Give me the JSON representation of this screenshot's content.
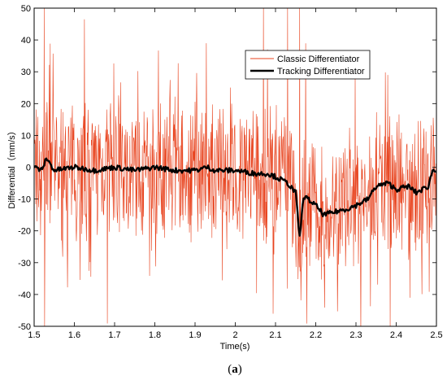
{
  "chart_data": {
    "type": "line",
    "title": "",
    "xlabel": "Time(s)",
    "ylabel": "Differential（mm/s）",
    "caption_open": "(",
    "caption_bold": "a",
    "caption_close": ")",
    "xlim": [
      1.5,
      2.5
    ],
    "ylim": [
      -50,
      50
    ],
    "xticks": [
      "1.5",
      "1.6",
      "1.7",
      "1.8",
      "1.9",
      "2",
      "2.1",
      "2.2",
      "2.3",
      "2.4",
      "2.5"
    ],
    "yticks": [
      "-50",
      "-40",
      "-30",
      "-20",
      "-10",
      "0",
      "10",
      "20",
      "30",
      "40",
      "50"
    ],
    "grid": false,
    "legend_position": "top-right",
    "series": [
      {
        "name": "Classic Differentiator",
        "color": "#e8431e",
        "line_width": "thin",
        "noise_amplitude_note": "dense oscillation roughly between -30 and 30",
        "x": [
          1.5,
          1.525,
          1.526,
          1.55,
          1.6,
          1.65,
          1.7,
          1.75,
          1.8,
          1.85,
          1.9,
          1.95,
          2.0,
          2.05,
          2.07,
          2.1,
          2.13,
          2.15,
          2.16,
          2.2,
          2.25,
          2.3,
          2.35,
          2.4,
          2.45,
          2.5
        ],
        "y": [
          0,
          50,
          -50,
          0,
          2,
          0,
          1,
          -2,
          0,
          1,
          0,
          2,
          -1,
          0,
          50,
          -3,
          50,
          -24,
          50,
          -14,
          -13,
          -12,
          -7,
          -6,
          -8,
          -1
        ]
      },
      {
        "name": "Tracking Differentiator",
        "color": "#000000",
        "line_width": "thick",
        "x": [
          1.5,
          1.52,
          1.53,
          1.55,
          1.6,
          1.65,
          1.7,
          1.75,
          1.8,
          1.85,
          1.9,
          1.93,
          1.95,
          2.0,
          2.05,
          2.08,
          2.1,
          2.13,
          2.15,
          2.16,
          2.17,
          2.2,
          2.22,
          2.25,
          2.28,
          2.3,
          2.33,
          2.35,
          2.38,
          2.4,
          2.43,
          2.45,
          2.48,
          2.49,
          2.5
        ],
        "y": [
          0,
          -1,
          3,
          -1,
          0,
          -1,
          0,
          -1,
          0,
          -1,
          -1,
          0,
          -1,
          -1,
          -2,
          -2,
          -3,
          -5,
          -8,
          -22,
          -9,
          -12,
          -15,
          -14,
          -13,
          -12,
          -10,
          -6,
          -5,
          -7,
          -6,
          -8,
          -6,
          -1,
          -1
        ]
      }
    ]
  }
}
